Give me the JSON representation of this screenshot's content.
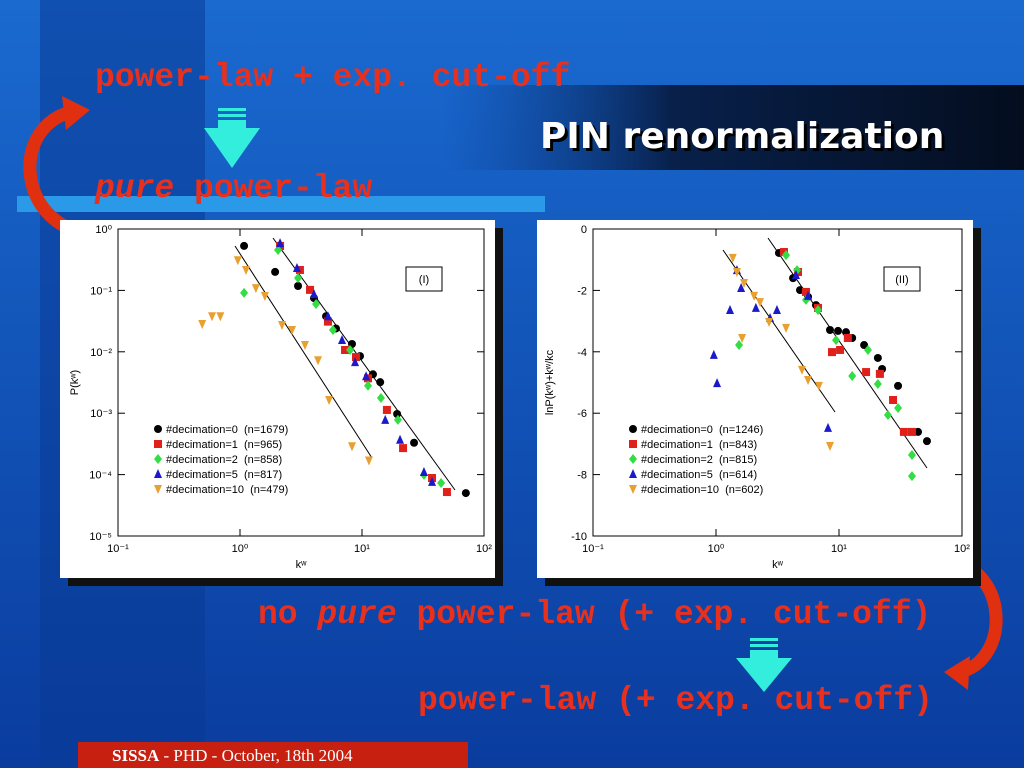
{
  "slide": {
    "title": "PIN renormalization",
    "note_top": "power-law + exp. cut-off",
    "note_mid": {
      "emph": "pure",
      "rest": "power-law"
    },
    "note_low": {
      "lead": "no",
      "emph": "pure",
      "rest": "power-law (+ exp. cut-off)"
    },
    "note_bottom": "power-law (+ exp. cut-off)",
    "footer": {
      "org": "SISSA",
      "rest": "- PHD -  October, 18th 2004"
    }
  },
  "chart_data": [
    {
      "type": "scatter",
      "annotation": "(I)",
      "x_label": "kʷ",
      "y_label": "P(kʷ)",
      "xlog": true,
      "ylog": true,
      "legend": "lower left",
      "xlim": [
        0.1,
        100
      ],
      "xticks": [
        {
          "value": 0.1,
          "label": "10⁻¹"
        },
        {
          "value": 1,
          "label": "10⁰"
        },
        {
          "value": 10,
          "label": "10¹"
        },
        {
          "value": 100,
          "label": "10²"
        }
      ],
      "ylim": [
        1e-05,
        1
      ],
      "yticks": [
        {
          "value": 1e-05,
          "label": "10⁻⁵"
        },
        {
          "value": 0.0001,
          "label": "10⁻⁴"
        },
        {
          "value": 0.001,
          "label": "10⁻³"
        },
        {
          "value": 0.01,
          "label": "10⁻²"
        },
        {
          "value": 0.1,
          "label": "10⁻¹"
        },
        {
          "value": 1,
          "label": "10⁰"
        }
      ],
      "series": [
        {
          "name": "#decimation=0  (n=1679)",
          "color": "#000000",
          "marker": "circle",
          "x": [
            1.08,
            1.94,
            2.99,
            4.04,
            5.07,
            6.12,
            8.28,
            9.63,
            12.3,
            14.1,
            19.4,
            26.7,
            71
          ],
          "values": [
            0.53,
            0.2,
            0.118,
            0.075,
            0.038,
            0.024,
            0.0134,
            0.0085,
            0.0043,
            0.0032,
            0.00097,
            0.00033,
            5e-05
          ]
        },
        {
          "name": "#decimation=1  (n=965)",
          "color": "#e0201a",
          "marker": "square",
          "x": [
            2.13,
            3.1,
            3.75,
            5.26,
            7.26,
            8.93,
            11.2,
            16,
            21.7,
            37.5,
            49.7
          ],
          "values": [
            0.53,
            0.215,
            0.102,
            0.031,
            0.0107,
            0.0082,
            0.0037,
            0.00113,
            0.00027,
            8.8e-05,
            5.2e-05
          ]
        },
        {
          "name": "#decimation=2  (n=858)",
          "color": "#33dd44",
          "marker": "diamond",
          "x": [
            1.08,
            2.05,
            2.99,
            4.2,
            5.78,
            7.98,
            11.2,
            14.3,
            19.7,
            32.2,
            44.5
          ],
          "values": [
            0.091,
            0.455,
            0.159,
            0.06,
            0.0226,
            0.0107,
            0.0028,
            0.00177,
            0.00078,
            9.9e-05,
            7.3e-05
          ]
        },
        {
          "name": "#decimation=5  (n=817)",
          "color": "#1a1acc",
          "marker": "triangle-up",
          "x": [
            2.13,
            2.93,
            4.04,
            5.26,
            6.86,
            8.77,
            10.8,
            15.5,
            20.5,
            32.2,
            37.5
          ],
          "values": [
            0.59,
            0.232,
            0.087,
            0.038,
            0.0156,
            0.0068,
            0.004,
            0.00078,
            0.00037,
            0.00011,
            7.6e-05
          ]
        },
        {
          "name": "#decimation=10  (n=479)",
          "color": "#e8a030",
          "marker": "triangle-down",
          "x": [
            0.49,
            0.59,
            0.69,
            0.96,
            1.12,
            1.35,
            1.6,
            2.21,
            2.67,
            3.41,
            4.36,
            5.37,
            8.28,
            11.4
          ],
          "values": [
            0.0284,
            0.038,
            0.038,
            0.31,
            0.215,
            0.109,
            0.081,
            0.0273,
            0.0226,
            0.0129,
            0.0073,
            0.00164,
            0.00029,
            0.00017
          ]
        }
      ]
    },
    {
      "type": "scatter",
      "annotation": "(II)",
      "x_label": "kʷ",
      "y_label": "lnP(kʷ)+kʷ/kc",
      "xlog": true,
      "ylog": false,
      "legend": "lower left",
      "xlim": [
        0.1,
        100
      ],
      "xticks": [
        {
          "value": 0.1,
          "label": "10⁻¹"
        },
        {
          "value": 1,
          "label": "10⁰"
        },
        {
          "value": 10,
          "label": "10¹"
        },
        {
          "value": 100,
          "label": "10²"
        }
      ],
      "ylim": [
        -10,
        0
      ],
      "yticks": [
        -10,
        -8,
        -6,
        -4,
        -2,
        0
      ],
      "series": [
        {
          "name": "#decimation=0  (n=1246)",
          "color": "#000000",
          "marker": "circle",
          "x": [
            3.25,
            4.23,
            4.82,
            5.6,
            6.5,
            8.45,
            9.82,
            11.4,
            12.8,
            16,
            20.7,
            22.4,
            30.2,
            43.9,
            51.9
          ],
          "values": [
            -0.78,
            -1.6,
            -1.99,
            -2.21,
            -2.48,
            -3.29,
            -3.32,
            -3.36,
            -3.55,
            -3.78,
            -4.2,
            -4.56,
            -5.11,
            -6.61,
            -6.91
          ]
        },
        {
          "name": "#decimation=1  (n=843)",
          "color": "#e0201a",
          "marker": "square",
          "x": [
            3.57,
            4.64,
            5.39,
            6.75,
            8.77,
            10.2,
            11.8,
            16.6,
            21.5,
            27.5,
            33.7,
            39.2
          ],
          "values": [
            -0.75,
            -1.4,
            -2.05,
            -2.57,
            -4.01,
            -3.94,
            -3.55,
            -4.66,
            -4.72,
            -5.57,
            -6.61,
            -6.61
          ]
        },
        {
          "name": "#decimation=2  (n=815)",
          "color": "#33dd44",
          "marker": "diamond",
          "x": [
            1.54,
            3.71,
            4.56,
            5.39,
            6.75,
            9.46,
            12.8,
            17.2,
            20.7,
            25,
            30.2,
            39.2,
            39.2
          ],
          "values": [
            -3.78,
            -0.85,
            -1.34,
            -2.31,
            -2.64,
            -3.62,
            -4.79,
            -3.94,
            -5.05,
            -6.06,
            -5.83,
            -7.36,
            -8.05
          ]
        },
        {
          "name": "#decimation=5  (n=614)",
          "color": "#1a1acc",
          "marker": "triangle-up",
          "x": [
            0.96,
            1.02,
            1.3,
            1.48,
            1.6,
            2.11,
            2.75,
            3.13,
            4.47,
            5.6,
            8.14
          ],
          "values": [
            -4.1,
            -5.02,
            -2.64,
            -1.34,
            -1.92,
            -2.57,
            -2.9,
            -2.64,
            -1.5,
            -2.18,
            -6.48
          ]
        },
        {
          "name": "#decimation=10  (n=602)",
          "color": "#e8a030",
          "marker": "triangle-down",
          "x": [
            1.37,
            1.48,
            1.69,
            2.04,
            2.28,
            2.7,
            1.63,
            3.71,
            5,
            5.6,
            6.87,
            8.45
          ],
          "values": [
            -0.94,
            -1.4,
            -1.76,
            -2.18,
            -2.38,
            -3.03,
            -3.55,
            -3.22,
            -4.59,
            -4.92,
            -5.11,
            -7.07
          ]
        }
      ]
    }
  ]
}
